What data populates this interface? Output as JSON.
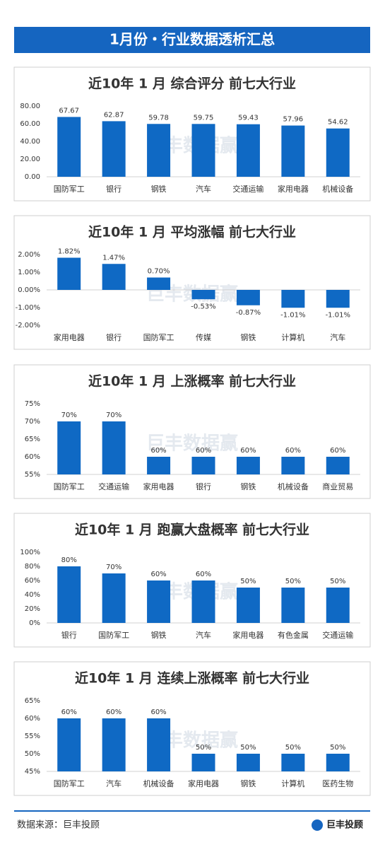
{
  "title": "1月份・行业数据透析汇总",
  "watermark": "巨丰数据赢",
  "source": "数据来源：巨丰投顾",
  "logo": "巨丰投顾",
  "chart_data": [
    {
      "type": "bar",
      "title": "近10年 1 月 综合评分 前七大行业",
      "color": "#0f69c4",
      "categories": [
        "国防军工",
        "银行",
        "钢铁",
        "汽车",
        "交通运输",
        "家用电器",
        "机械设备"
      ],
      "values": [
        67.67,
        62.87,
        59.78,
        59.75,
        59.43,
        57.96,
        54.62
      ],
      "ylim": [
        0,
        80
      ],
      "yticks": [
        {
          "value": 0,
          "label": "0.00"
        },
        {
          "value": 20,
          "label": "20.00"
        },
        {
          "value": 40,
          "label": "40.00"
        },
        {
          "value": 60,
          "label": "60.00"
        },
        {
          "value": 80,
          "label": "80.00"
        }
      ]
    },
    {
      "type": "bar",
      "title": "近10年 1 月 平均涨幅 前七大行业",
      "color": "#0f69c4",
      "categories": [
        "家用电器",
        "银行",
        "国防军工",
        "传媒",
        "钢铁",
        "计算机",
        "汽车"
      ],
      "values": [
        1.82,
        1.47,
        0.7,
        -0.53,
        -0.87,
        -1.01,
        -1.01
      ],
      "value_labels": [
        "1.82%",
        "1.47%",
        "0.70%",
        "-0.53%",
        "-0.87%",
        "-1.01%",
        "-1.01%"
      ],
      "ylim": [
        -2,
        2
      ],
      "yticks": [
        {
          "value": -2,
          "label": "-2.00%"
        },
        {
          "value": -1,
          "label": "-1.00%"
        },
        {
          "value": 0,
          "label": "0.00%"
        },
        {
          "value": 1,
          "label": "1.00%"
        },
        {
          "value": 2,
          "label": "2.00%"
        }
      ]
    },
    {
      "type": "bar",
      "title": "近10年 1 月 上涨概率 前七大行业",
      "color": "#0f69c4",
      "categories": [
        "国防军工",
        "交通运输",
        "家用电器",
        "银行",
        "钢铁",
        "机械设备",
        "商业贸易"
      ],
      "values": [
        70,
        70,
        60,
        60,
        60,
        60,
        60
      ],
      "value_labels": [
        "70%",
        "70%",
        "60%",
        "60%",
        "60%",
        "60%",
        "60%"
      ],
      "ylim": [
        55,
        75
      ],
      "yticks": [
        {
          "value": 55,
          "label": "55%"
        },
        {
          "value": 60,
          "label": "60%"
        },
        {
          "value": 65,
          "label": "65%"
        },
        {
          "value": 70,
          "label": "70%"
        },
        {
          "value": 75,
          "label": "75%"
        }
      ]
    },
    {
      "type": "bar",
      "title": "近10年 1 月 跑赢大盘概率 前七大行业",
      "color": "#0f69c4",
      "categories": [
        "银行",
        "国防军工",
        "钢铁",
        "汽车",
        "家用电器",
        "有色金属",
        "交通运输"
      ],
      "values": [
        80,
        70,
        60,
        60,
        50,
        50,
        50
      ],
      "value_labels": [
        "80%",
        "70%",
        "60%",
        "60%",
        "50%",
        "50%",
        "50%"
      ],
      "ylim": [
        0,
        100
      ],
      "yticks": [
        {
          "value": 0,
          "label": "0%"
        },
        {
          "value": 20,
          "label": "20%"
        },
        {
          "value": 40,
          "label": "40%"
        },
        {
          "value": 60,
          "label": "60%"
        },
        {
          "value": 80,
          "label": "80%"
        },
        {
          "value": 100,
          "label": "100%"
        }
      ]
    },
    {
      "type": "bar",
      "title": "近10年 1 月 连续上涨概率 前七大行业",
      "color": "#0f69c4",
      "categories": [
        "国防军工",
        "汽车",
        "机械设备",
        "家用电器",
        "钢铁",
        "计算机",
        "医药生物"
      ],
      "values": [
        60,
        60,
        60,
        50,
        50,
        50,
        50
      ],
      "value_labels": [
        "60%",
        "60%",
        "60%",
        "50%",
        "50%",
        "50%",
        "50%"
      ],
      "ylim": [
        45,
        65
      ],
      "yticks": [
        {
          "value": 45,
          "label": "45%"
        },
        {
          "value": 50,
          "label": "50%"
        },
        {
          "value": 55,
          "label": "55%"
        },
        {
          "value": 60,
          "label": "60%"
        },
        {
          "value": 65,
          "label": "65%"
        }
      ]
    }
  ]
}
